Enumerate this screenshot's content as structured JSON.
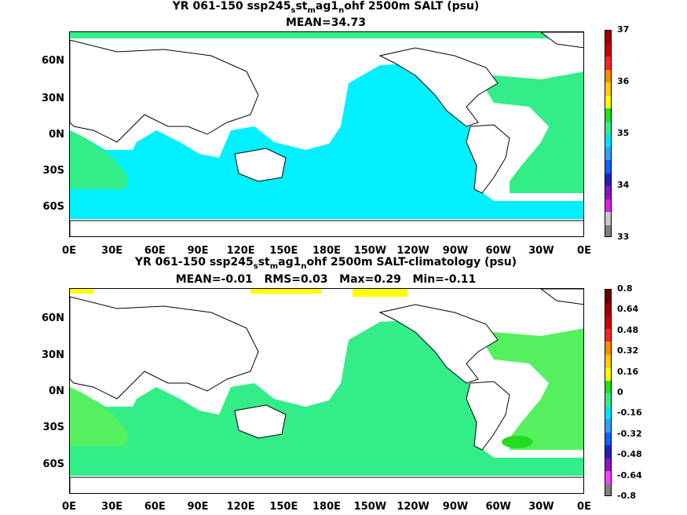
{
  "panels": [
    {
      "title_parts": [
        "YR 061-150 ssp245",
        "s",
        "st",
        "m",
        "ag1",
        "n",
        "ohf 2500m SALT (psu)"
      ],
      "stats": "MEAN=34.73",
      "ocean_color": "#00f0ff",
      "atlantic_color": "#33ee88",
      "colorbar": {
        "colors": [
          "#808080",
          "#c8c8c8",
          "#e020e0",
          "#9010c0",
          "#2020c0",
          "#1060ff",
          "#30a0ff",
          "#00e0ff",
          "#33ee88",
          "#22dd22",
          "#ffff00",
          "#ffcc00",
          "#ff8800",
          "#ff2222",
          "#cc0000",
          "#990000"
        ],
        "labels": [
          "37",
          "36",
          "35",
          "34",
          "33"
        ]
      }
    },
    {
      "title_parts": [
        "YR 061-150 ssp245",
        "s",
        "st",
        "m",
        "ag1",
        "n",
        "ohf 2500m SALT-climatology (psu)"
      ],
      "stats": "MEAN=-0.01   RMS=0.03   Max=0.29   Min=-0.11",
      "ocean_color": "#33ee88",
      "atlantic_color": "#55f060",
      "colorbar": {
        "colors": [
          "#808080",
          "#ff40ff",
          "#9010c0",
          "#2020c0",
          "#1060ff",
          "#30a0ff",
          "#00e0ff",
          "#33ee88",
          "#22dd22",
          "#ffff00",
          "#ffcc00",
          "#ff8800",
          "#ff2222",
          "#cc0000",
          "#990000",
          "#660000"
        ],
        "labels": [
          "0.8",
          "0.64",
          "0.48",
          "0.32",
          "0.16",
          "0",
          "-0.16",
          "-0.32",
          "-0.48",
          "-0.64",
          "-0.8"
        ]
      }
    }
  ],
  "lat_labels": [
    "60N",
    "30N",
    "0N",
    "30S",
    "60S"
  ],
  "lon_labels": [
    "0E",
    "30E",
    "60E",
    "90E",
    "120E",
    "150E",
    "180E",
    "150W",
    "120W",
    "90W",
    "60W",
    "30W",
    "0E"
  ]
}
